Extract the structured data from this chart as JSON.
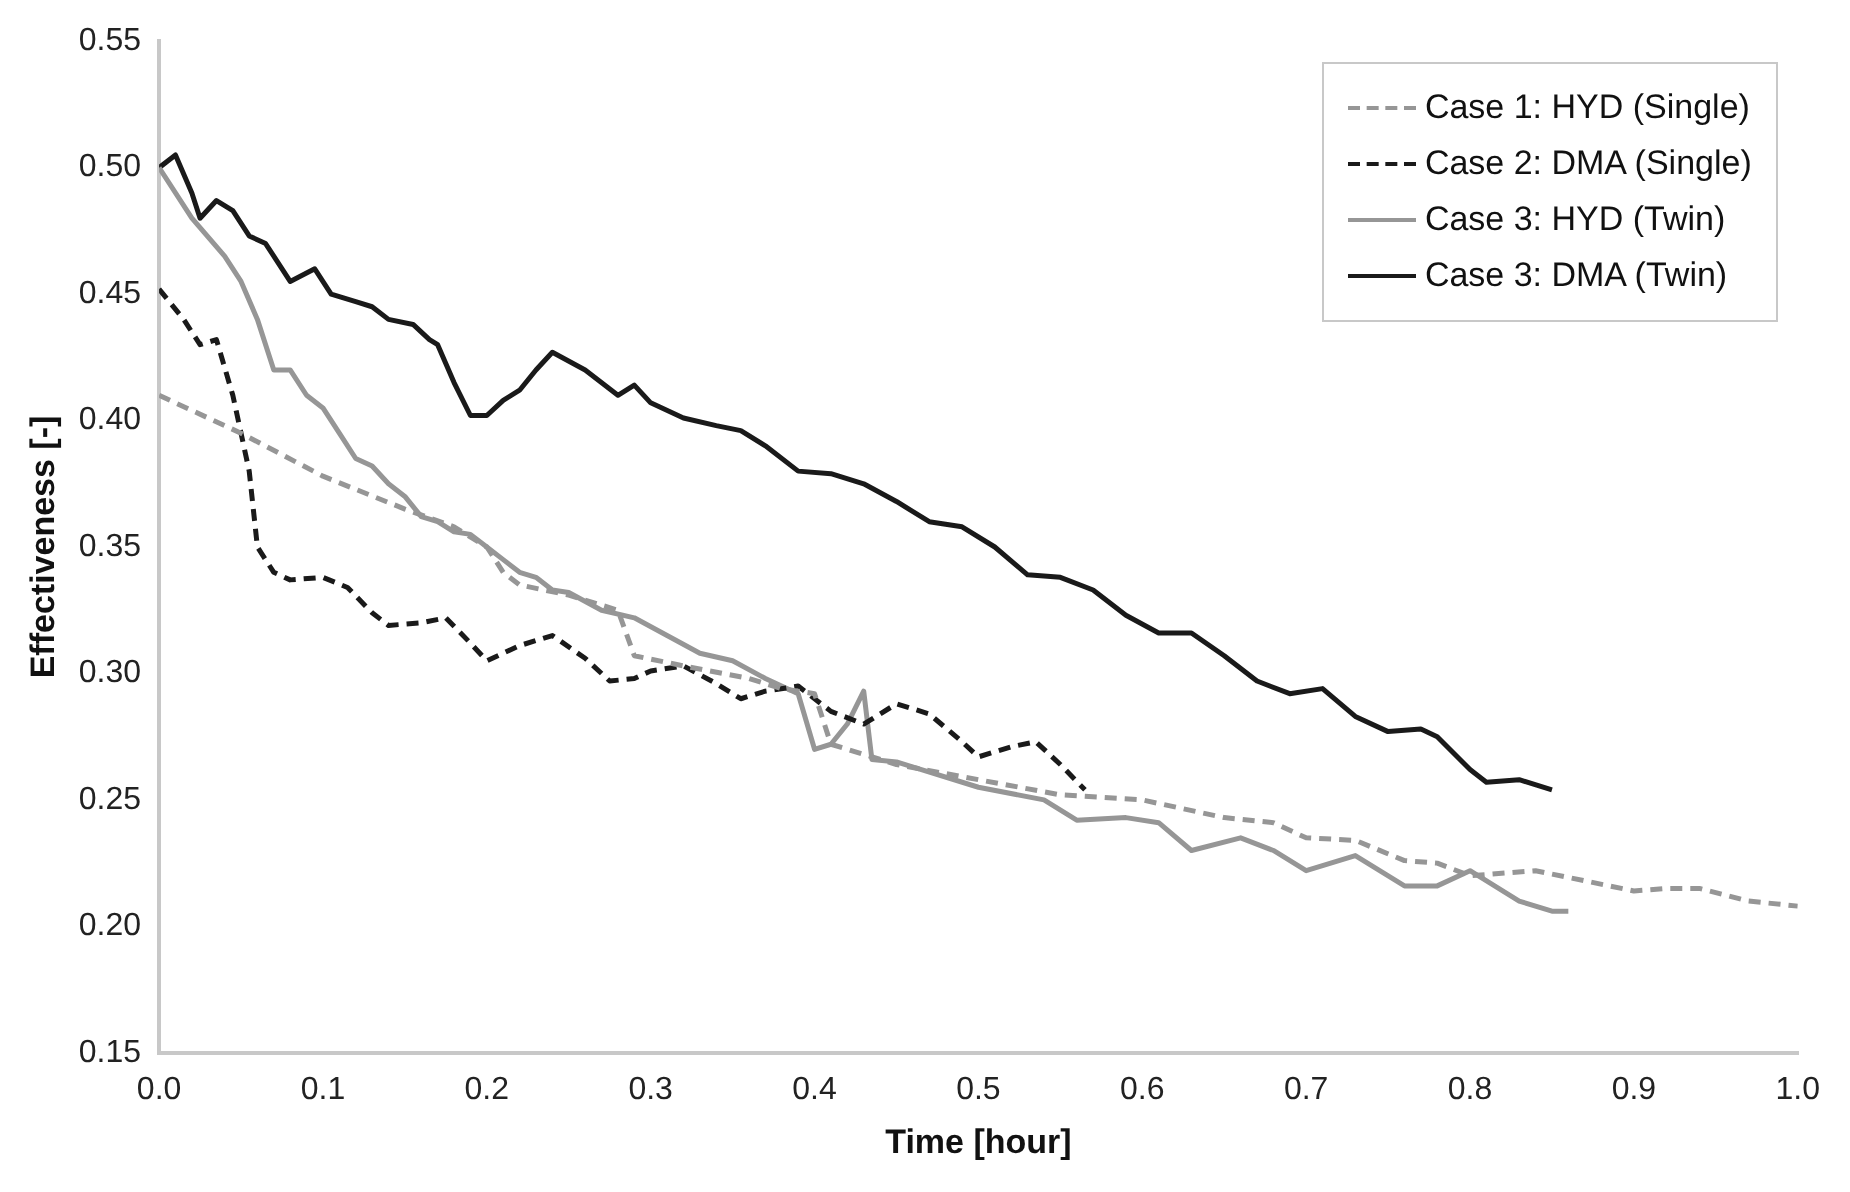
{
  "chart_data": {
    "type": "line",
    "xlabel": "Time [hour]",
    "ylabel": "Effectiveness [-]",
    "xlim": [
      0,
      1
    ],
    "ylim": [
      0.15,
      0.55
    ],
    "xticks": [
      {
        "value": 0,
        "label": "0.0"
      },
      0.1,
      0.2,
      0.3,
      0.4,
      0.5,
      0.6,
      0.7,
      0.8,
      0.9,
      {
        "value": 1,
        "label": "1.0"
      }
    ],
    "yticks": [
      0.15,
      {
        "value": 0.2,
        "label": "0.20"
      },
      0.25,
      {
        "value": 0.3,
        "label": "0.30"
      },
      0.35,
      {
        "value": 0.4,
        "label": "0.40"
      },
      0.45,
      {
        "value": 0.5,
        "label": "0.50"
      },
      0.55
    ],
    "grid": false,
    "legend": "top right",
    "marker": "none",
    "series": [
      {
        "name": "Case 1: HYD (Single)",
        "color": "#969696",
        "line_style": "dashed",
        "x": [
          0,
          0.05,
          0.1,
          0.15,
          0.18,
          0.2,
          0.21,
          0.22,
          0.25,
          0.28,
          0.29,
          0.32,
          0.36,
          0.38,
          0.4,
          0.41,
          0.45,
          0.5,
          0.55,
          0.6,
          0.65,
          0.68,
          0.7,
          0.73,
          0.76,
          0.78,
          0.8,
          0.84,
          0.87,
          0.9,
          0.92,
          0.94,
          0.97,
          1.0
        ],
        "values": [
          0.41,
          0.395,
          0.378,
          0.365,
          0.358,
          0.35,
          0.34,
          0.335,
          0.331,
          0.325,
          0.307,
          0.303,
          0.298,
          0.294,
          0.292,
          0.272,
          0.264,
          0.258,
          0.252,
          0.25,
          0.243,
          0.241,
          0.235,
          0.234,
          0.226,
          0.225,
          0.22,
          0.222,
          0.218,
          0.214,
          0.215,
          0.215,
          0.21,
          0.208
        ]
      },
      {
        "name": "Case 2: DMA (Single)",
        "color": "#1a1a1a",
        "line_style": "dashed",
        "x": [
          0,
          0.015,
          0.025,
          0.035,
          0.045,
          0.055,
          0.06,
          0.07,
          0.08,
          0.1,
          0.115,
          0.13,
          0.14,
          0.16,
          0.175,
          0.19,
          0.2,
          0.22,
          0.24,
          0.26,
          0.275,
          0.29,
          0.3,
          0.32,
          0.34,
          0.355,
          0.37,
          0.39,
          0.41,
          0.43,
          0.45,
          0.47,
          0.49,
          0.5,
          0.52,
          0.535,
          0.55,
          0.565
        ],
        "values": [
          0.452,
          0.44,
          0.43,
          0.432,
          0.41,
          0.38,
          0.35,
          0.34,
          0.337,
          0.338,
          0.334,
          0.324,
          0.319,
          0.32,
          0.322,
          0.312,
          0.305,
          0.311,
          0.315,
          0.306,
          0.297,
          0.298,
          0.301,
          0.303,
          0.296,
          0.29,
          0.293,
          0.295,
          0.285,
          0.28,
          0.288,
          0.284,
          0.273,
          0.267,
          0.271,
          0.273,
          0.264,
          0.254
        ]
      },
      {
        "name": "Case 3: HYD (Twin)",
        "color": "#969696",
        "line_style": "solid",
        "x": [
          0,
          0.02,
          0.04,
          0.05,
          0.06,
          0.07,
          0.08,
          0.09,
          0.1,
          0.11,
          0.12,
          0.13,
          0.14,
          0.15,
          0.16,
          0.17,
          0.18,
          0.19,
          0.2,
          0.21,
          0.22,
          0.23,
          0.24,
          0.25,
          0.27,
          0.29,
          0.31,
          0.33,
          0.35,
          0.37,
          0.39,
          0.4,
          0.41,
          0.42,
          0.43,
          0.435,
          0.45,
          0.5,
          0.54,
          0.56,
          0.59,
          0.61,
          0.63,
          0.66,
          0.68,
          0.7,
          0.73,
          0.76,
          0.78,
          0.8,
          0.83,
          0.85,
          0.86
        ],
        "values": [
          0.5,
          0.48,
          0.465,
          0.455,
          0.44,
          0.42,
          0.42,
          0.41,
          0.405,
          0.395,
          0.385,
          0.382,
          0.375,
          0.37,
          0.362,
          0.36,
          0.356,
          0.355,
          0.35,
          0.345,
          0.34,
          0.338,
          0.333,
          0.332,
          0.325,
          0.322,
          0.315,
          0.308,
          0.305,
          0.298,
          0.292,
          0.27,
          0.272,
          0.28,
          0.293,
          0.266,
          0.265,
          0.255,
          0.25,
          0.242,
          0.243,
          0.241,
          0.23,
          0.235,
          0.23,
          0.222,
          0.228,
          0.216,
          0.216,
          0.222,
          0.21,
          0.206,
          0.206
        ]
      },
      {
        "name": "Case 3: DMA (Twin)",
        "color": "#1a1a1a",
        "line_style": "solid",
        "x": [
          0,
          0.01,
          0.02,
          0.025,
          0.035,
          0.045,
          0.055,
          0.065,
          0.08,
          0.095,
          0.105,
          0.12,
          0.13,
          0.14,
          0.155,
          0.165,
          0.17,
          0.18,
          0.19,
          0.2,
          0.21,
          0.22,
          0.23,
          0.24,
          0.26,
          0.28,
          0.29,
          0.3,
          0.32,
          0.34,
          0.355,
          0.37,
          0.39,
          0.41,
          0.43,
          0.45,
          0.47,
          0.49,
          0.51,
          0.53,
          0.55,
          0.57,
          0.59,
          0.61,
          0.63,
          0.65,
          0.67,
          0.69,
          0.71,
          0.73,
          0.75,
          0.77,
          0.78,
          0.8,
          0.81,
          0.83,
          0.85
        ],
        "values": [
          0.5,
          0.505,
          0.49,
          0.48,
          0.487,
          0.483,
          0.473,
          0.47,
          0.455,
          0.46,
          0.45,
          0.447,
          0.445,
          0.44,
          0.438,
          0.432,
          0.43,
          0.415,
          0.402,
          0.402,
          0.408,
          0.412,
          0.42,
          0.427,
          0.42,
          0.41,
          0.414,
          0.407,
          0.401,
          0.398,
          0.396,
          0.39,
          0.38,
          0.379,
          0.375,
          0.368,
          0.36,
          0.358,
          0.35,
          0.339,
          0.338,
          0.333,
          0.323,
          0.316,
          0.316,
          0.307,
          0.297,
          0.292,
          0.294,
          0.283,
          0.277,
          0.278,
          0.275,
          0.262,
          0.257,
          0.258,
          0.254
        ]
      }
    ]
  }
}
